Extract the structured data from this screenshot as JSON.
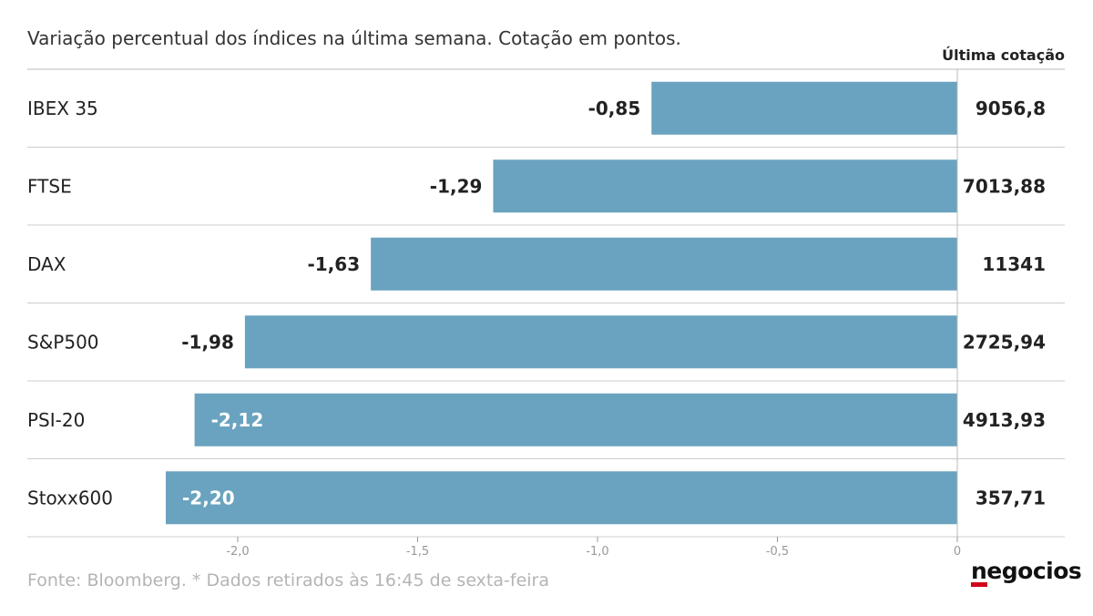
{
  "header": {
    "subtitle": "Variação percentual dos índices na última semana. Cotação em pontos.",
    "column_title": "Última cotação"
  },
  "footer": {
    "source": "Fonte: Bloomberg.  * Dados retirados às 16:45 de sexta-feira",
    "logo": "negocios"
  },
  "colors": {
    "bar": "#6aa3bf",
    "label_dark": "#222222",
    "label_light": "#ffffff",
    "grid": "#cccccc"
  },
  "chart_data": {
    "type": "bar",
    "orientation": "horizontal",
    "categories": [
      "IBEX 35",
      "FTSE",
      "DAX",
      "S&P500",
      "PSI-20",
      "Stoxx600"
    ],
    "values": [
      -0.85,
      -1.29,
      -1.63,
      -1.98,
      -2.12,
      -2.2
    ],
    "value_labels": [
      "-0,85",
      "-1,29",
      "-1,63",
      "-1,98",
      "-2,12",
      "-2,20"
    ],
    "last_quotes": [
      "9056,8",
      "7013,88",
      "11341",
      "2725,94",
      "4913,93",
      "357,71"
    ],
    "xlim": [
      -2.2,
      0
    ],
    "x_ticks": [
      -2.0,
      -1.5,
      -1.0,
      -0.5,
      0
    ],
    "x_tick_labels": [
      "-2,0",
      "-1,5",
      "-1,0",
      "-0,5",
      "0"
    ],
    "xlabel": "",
    "ylabel": "",
    "grid": false,
    "legend": "none"
  }
}
